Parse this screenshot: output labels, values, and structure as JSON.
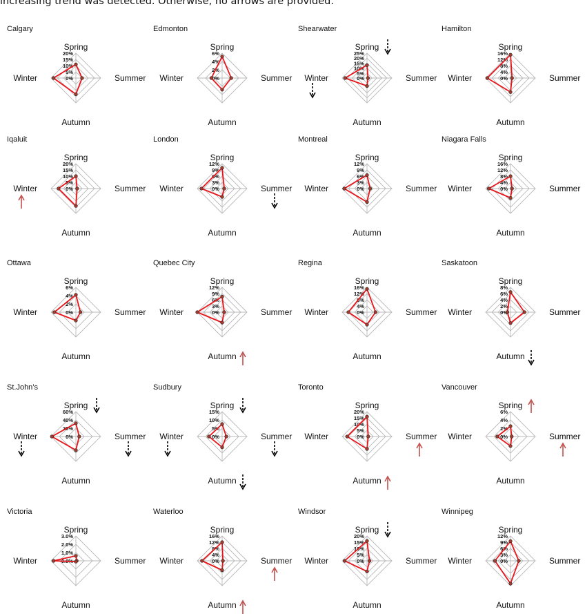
{
  "header_text": "increasing trend was detected. Otherwise, no arrows are provided.",
  "colors": {
    "series": "#e8151b",
    "marker_fill": "#a33b2e",
    "grid": "#b9b9b9",
    "arrow_decrease": "#000000",
    "arrow_increase": "#c0504d"
  },
  "chart_data": [
    {
      "type": "radar",
      "title": "Calgary",
      "axes": [
        "Spring",
        "Summer",
        "Autumn",
        "Winter"
      ],
      "ticks": [
        "0%",
        "5%",
        "10%",
        "15%",
        "20%"
      ],
      "max": 20,
      "values": [
        11,
        5,
        13,
        18
      ],
      "trends": {}
    },
    {
      "type": "radar",
      "title": "Edmonton",
      "axes": [
        "Spring",
        "Summer",
        "Autumn",
        "Winter"
      ],
      "ticks": [
        "0%",
        "2%",
        "4%",
        "6%"
      ],
      "max": 6,
      "values": [
        5.2,
        2.2,
        2.8,
        2.6
      ],
      "trends": {}
    },
    {
      "type": "radar",
      "title": "Shearwater",
      "axes": [
        "Spring",
        "Summer",
        "Autumn",
        "Winter"
      ],
      "ticks": [
        "0%",
        "5%",
        "10%",
        "15%",
        "20%",
        "25%"
      ],
      "max": 25,
      "values": [
        13,
        1,
        8,
        22
      ],
      "trends": {
        "Spring": "decrease",
        "Winter": "decrease"
      }
    },
    {
      "type": "radar",
      "title": "Hamilton",
      "axes": [
        "Spring",
        "Summer",
        "Autumn",
        "Winter"
      ],
      "ticks": [
        "0%",
        "4%",
        "8%",
        "12%",
        "16%"
      ],
      "max": 16,
      "values": [
        15,
        1,
        9,
        15
      ],
      "trends": {}
    },
    {
      "type": "radar",
      "title": "Iqaluit",
      "axes": [
        "Spring",
        "Summer",
        "Autumn",
        "Winter"
      ],
      "ticks": [
        "0%",
        "5%",
        "10%",
        "15%",
        "20%"
      ],
      "max": 20,
      "values": [
        10,
        1,
        14,
        14
      ],
      "trends": {
        "Winter": "increase"
      }
    },
    {
      "type": "radar",
      "title": "London",
      "axes": [
        "Spring",
        "Summer",
        "Autumn",
        "Winter"
      ],
      "ticks": [
        "0%",
        "3%",
        "6%",
        "9%",
        "12%"
      ],
      "max": 12,
      "values": [
        10,
        1,
        4,
        10
      ],
      "trends": {
        "Summer": "decrease"
      }
    },
    {
      "type": "radar",
      "title": "Montreal",
      "axes": [
        "Spring",
        "Summer",
        "Autumn",
        "Winter"
      ],
      "ticks": [
        "0%",
        "3%",
        "6%",
        "9%",
        "12%"
      ],
      "max": 12,
      "values": [
        6.5,
        1.5,
        6.5,
        11
      ],
      "trends": {}
    },
    {
      "type": "radar",
      "title": "Niagara Falls",
      "axes": [
        "Spring",
        "Summer",
        "Autumn",
        "Winter"
      ],
      "ticks": [
        "0%",
        "4%",
        "8%",
        "12%",
        "16%"
      ],
      "max": 16,
      "values": [
        8,
        1,
        6,
        14
      ],
      "trends": {}
    },
    {
      "type": "radar",
      "title": "Ottawa",
      "axes": [
        "Spring",
        "Summer",
        "Autumn",
        "Winter"
      ],
      "ticks": [
        "0%",
        "2%",
        "4%",
        "6%"
      ],
      "max": 6,
      "values": [
        4.2,
        1.1,
        2.0,
        5.2
      ],
      "trends": {}
    },
    {
      "type": "radar",
      "title": "Quebec City",
      "axes": [
        "Spring",
        "Summer",
        "Autumn",
        "Winter"
      ],
      "ticks": [
        "0%",
        "3%",
        "6%",
        "9%",
        "12%"
      ],
      "max": 12,
      "values": [
        7.5,
        1,
        5,
        12
      ],
      "trends": {
        "Autumn": "increase"
      }
    },
    {
      "type": "radar",
      "title": "Regina",
      "axes": [
        "Spring",
        "Summer",
        "Autumn",
        "Winter"
      ],
      "ticks": [
        "0%",
        "4%",
        "8%",
        "12%",
        "16%"
      ],
      "max": 16,
      "values": [
        15,
        5.5,
        8,
        12
      ],
      "trends": {}
    },
    {
      "type": "radar",
      "title": "Saskatoon",
      "axes": [
        "Spring",
        "Summer",
        "Autumn",
        "Winter"
      ],
      "ticks": [
        "0%",
        "2%",
        "4%",
        "6%",
        "8%"
      ],
      "max": 8,
      "values": [
        6.5,
        4.5,
        3.5,
        1
      ],
      "trends": {
        "Autumn": "decrease"
      }
    },
    {
      "type": "radar",
      "title": "St.John’s",
      "axes": [
        "Spring",
        "Summer",
        "Autumn",
        "Winter"
      ],
      "ticks": [
        "0%",
        "20%",
        "40%",
        "60%"
      ],
      "max": 60,
      "values": [
        32,
        8,
        33,
        58
      ],
      "trends": {
        "Spring": "decrease",
        "Summer": "decrease",
        "Winter": "decrease"
      }
    },
    {
      "type": "radar",
      "title": "Sudbury",
      "axes": [
        "Spring",
        "Summer",
        "Autumn",
        "Winter"
      ],
      "ticks": [
        "0%",
        "5%",
        "10%",
        "15%"
      ],
      "max": 15,
      "values": [
        7.5,
        2.5,
        6.5,
        8
      ],
      "trends": {
        "Spring": "decrease",
        "Summer": "decrease",
        "Autumn": "decrease",
        "Winter": "decrease"
      }
    },
    {
      "type": "radar",
      "title": "Toronto",
      "axes": [
        "Spring",
        "Summer",
        "Autumn",
        "Winter"
      ],
      "ticks": [
        "0%",
        "5%",
        "10%",
        "15%",
        "20%"
      ],
      "max": 20,
      "values": [
        16,
        1,
        10,
        16
      ],
      "trends": {
        "Summer": "increase",
        "Autumn": "increase"
      }
    },
    {
      "type": "radar",
      "title": "Vancouver",
      "axes": [
        "Spring",
        "Summer",
        "Autumn",
        "Winter"
      ],
      "ticks": [
        "0%",
        "2%",
        "4%",
        "6%"
      ],
      "max": 6,
      "values": [
        2.5,
        0.3,
        2.3,
        3.2
      ],
      "trends": {
        "Spring": "increase",
        "Summer": "increase"
      }
    },
    {
      "type": "radar",
      "title": "Victoria",
      "axes": [
        "Spring",
        "Summer",
        "Autumn",
        "Winter"
      ],
      "ticks": [
        "0.0%",
        "1.0%",
        "2.0%",
        "3.0%"
      ],
      "max": 3,
      "values": [
        0.6,
        0.1,
        0.1,
        2.7
      ],
      "trends": {}
    },
    {
      "type": "radar",
      "title": "Waterloo",
      "axes": [
        "Spring",
        "Summer",
        "Autumn",
        "Winter"
      ],
      "ticks": [
        "0%",
        "4%",
        "8%",
        "12%",
        "16%"
      ],
      "max": 16,
      "values": [
        12,
        0.5,
        6,
        13
      ],
      "trends": {
        "Summer": "increase",
        "Autumn": "increase"
      }
    },
    {
      "type": "radar",
      "title": "Windsor",
      "axes": [
        "Spring",
        "Summer",
        "Autumn",
        "Winter"
      ],
      "ticks": [
        "0%",
        "5%",
        "10%",
        "15%",
        "20%"
      ],
      "max": 20,
      "values": [
        16,
        2,
        8.5,
        18
      ],
      "trends": {
        "Spring": "decrease"
      }
    },
    {
      "type": "radar",
      "title": "Winnipeg",
      "axes": [
        "Spring",
        "Summer",
        "Autumn",
        "Winter"
      ],
      "ticks": [
        "0%",
        "3%",
        "6%",
        "9%",
        "12%"
      ],
      "max": 12,
      "values": [
        9.5,
        4,
        11,
        7.5
      ],
      "trends": {}
    }
  ]
}
